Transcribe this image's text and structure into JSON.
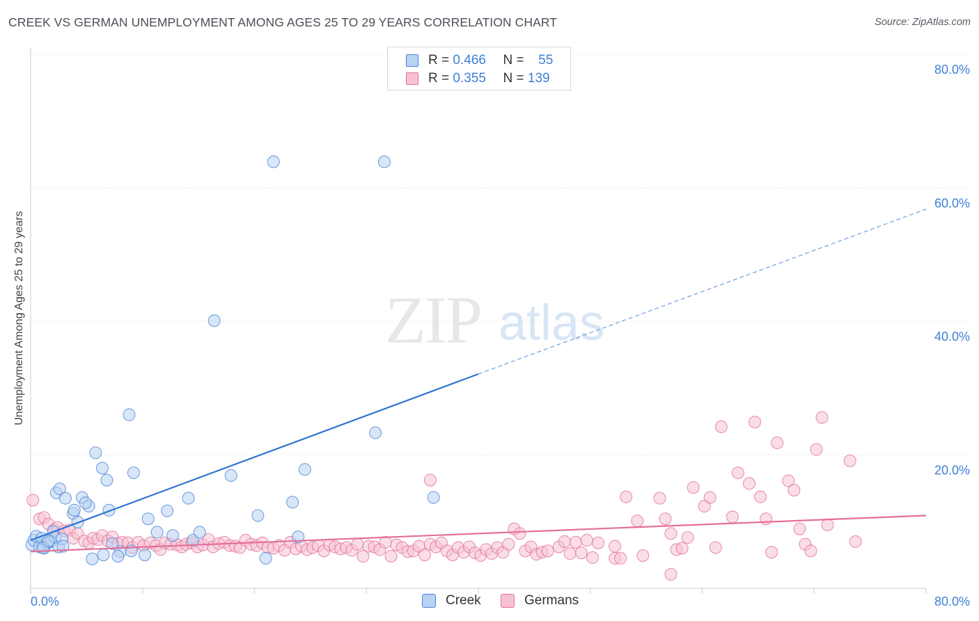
{
  "chart_data": {
    "type": "scatter",
    "title": "CREEK VS GERMAN UNEMPLOYMENT AMONG AGES 25 TO 29 YEARS CORRELATION CHART",
    "source": "Source: ZipAtlas.com",
    "ylabel": "Unemployment Among Ages 25 to 29 years",
    "xlim": [
      0,
      80
    ],
    "ylim": [
      0,
      80
    ],
    "x_tick_labels": [
      "0.0%",
      "80.0%"
    ],
    "y_ticks": [
      {
        "value": 20,
        "label": "20.0%"
      },
      {
        "value": 40,
        "label": "40.0%"
      },
      {
        "value": 60,
        "label": "60.0%"
      },
      {
        "value": 80,
        "label": "80.0%"
      }
    ],
    "watermark": {
      "zip": "ZIP",
      "atlas": "atlas"
    },
    "legend": [
      {
        "r_label": "R =",
        "r": "0.466",
        "n_label": "N =",
        "n": "55"
      },
      {
        "r_label": "R =",
        "r": "0.355",
        "n_label": "N =",
        "n": "139"
      }
    ],
    "series": [
      {
        "name": "Creek",
        "color": "#4a84d4",
        "fill": "#b8d2f3",
        "trend": {
          "x0": 0,
          "y0": 7.2,
          "x1": 40,
          "y1": 32.1,
          "dash_x1": 80,
          "dash_y1": 56.8
        },
        "points": [
          [
            0.1,
            6.5
          ],
          [
            0.3,
            7.2
          ],
          [
            0.5,
            7.8
          ],
          [
            0.8,
            6.2
          ],
          [
            1.0,
            7.5
          ],
          [
            1.2,
            6.0
          ],
          [
            1.5,
            6.8
          ],
          [
            1.8,
            7.0
          ],
          [
            2.0,
            8.5
          ],
          [
            2.2,
            7.6
          ],
          [
            2.5,
            6.2
          ],
          [
            2.8,
            7.4
          ],
          [
            2.3,
            14.3
          ],
          [
            2.6,
            14.9
          ],
          [
            3.1,
            13.5
          ],
          [
            3.8,
            11.2
          ],
          [
            3.9,
            11.7
          ],
          [
            4.6,
            13.6
          ],
          [
            4.2,
            9.9
          ],
          [
            5.2,
            12.3
          ],
          [
            4.9,
            12.8
          ],
          [
            5.8,
            20.3
          ],
          [
            6.4,
            18.0
          ],
          [
            6.8,
            16.2
          ],
          [
            7.0,
            11.7
          ],
          [
            8.8,
            26.0
          ],
          [
            9.2,
            17.3
          ],
          [
            10.2,
            5.0
          ],
          [
            10.5,
            10.4
          ],
          [
            11.3,
            8.4
          ],
          [
            12.2,
            11.6
          ],
          [
            12.7,
            7.9
          ],
          [
            14.1,
            13.5
          ],
          [
            16.4,
            40.1
          ],
          [
            17.9,
            16.9
          ],
          [
            20.3,
            10.9
          ],
          [
            21.7,
            63.9
          ],
          [
            23.4,
            12.9
          ],
          [
            23.9,
            7.7
          ],
          [
            24.5,
            17.8
          ],
          [
            36.0,
            13.6
          ],
          [
            30.8,
            23.3
          ],
          [
            31.6,
            63.9
          ],
          [
            14.5,
            7.2
          ],
          [
            8.0,
            5.5
          ],
          [
            1.1,
            6.1
          ],
          [
            2.9,
            6.3
          ],
          [
            6.5,
            5.0
          ],
          [
            7.8,
            4.8
          ],
          [
            5.5,
            4.4
          ],
          [
            7.3,
            6.7
          ],
          [
            9.0,
            5.6
          ],
          [
            15.1,
            8.4
          ],
          [
            21.0,
            4.5
          ],
          [
            1.6,
            7.1
          ]
        ]
      },
      {
        "name": "Germans",
        "color": "#e36f9b",
        "fill": "#f6c2d2",
        "trend": {
          "x0": 0,
          "y0": 5.5,
          "x1": 80,
          "y1": 10.9
        },
        "points": [
          [
            0.2,
            13.2
          ],
          [
            0.8,
            10.4
          ],
          [
            1.2,
            10.6
          ],
          [
            1.6,
            9.6
          ],
          [
            2.1,
            8.8
          ],
          [
            2.4,
            9.1
          ],
          [
            3.0,
            8.6
          ],
          [
            3.5,
            8.7
          ],
          [
            3.8,
            7.5
          ],
          [
            4.2,
            8.2
          ],
          [
            4.8,
            7.1
          ],
          [
            5.2,
            6.8
          ],
          [
            5.6,
            7.5
          ],
          [
            6.0,
            7.3
          ],
          [
            6.4,
            7.9
          ],
          [
            6.9,
            7.1
          ],
          [
            7.3,
            7.7
          ],
          [
            7.8,
            6.7
          ],
          [
            8.2,
            6.9
          ],
          [
            8.7,
            6.8
          ],
          [
            9.1,
            6.1
          ],
          [
            9.6,
            6.9
          ],
          [
            10.1,
            6.4
          ],
          [
            10.7,
            6.8
          ],
          [
            11.2,
            6.4
          ],
          [
            11.6,
            5.8
          ],
          [
            12.0,
            6.8
          ],
          [
            12.5,
            6.6
          ],
          [
            13.1,
            6.5
          ],
          [
            13.5,
            6.2
          ],
          [
            13.9,
            6.6
          ],
          [
            14.4,
            6.8
          ],
          [
            14.9,
            6.2
          ],
          [
            15.4,
            6.5
          ],
          [
            15.9,
            7.3
          ],
          [
            16.3,
            6.2
          ],
          [
            16.8,
            6.7
          ],
          [
            17.3,
            6.9
          ],
          [
            17.8,
            6.4
          ],
          [
            18.3,
            6.3
          ],
          [
            18.7,
            6.1
          ],
          [
            19.2,
            7.2
          ],
          [
            19.7,
            6.6
          ],
          [
            20.2,
            6.4
          ],
          [
            20.7,
            6.8
          ],
          [
            21.2,
            6.1
          ],
          [
            21.7,
            6.0
          ],
          [
            22.2,
            6.4
          ],
          [
            22.7,
            5.7
          ],
          [
            23.2,
            6.9
          ],
          [
            23.7,
            5.9
          ],
          [
            24.2,
            6.3
          ],
          [
            24.7,
            5.8
          ],
          [
            25.2,
            6.1
          ],
          [
            25.7,
            6.4
          ],
          [
            26.2,
            5.6
          ],
          [
            26.7,
            6.5
          ],
          [
            27.2,
            6.2
          ],
          [
            27.7,
            5.9
          ],
          [
            28.2,
            6.1
          ],
          [
            28.7,
            5.7
          ],
          [
            29.2,
            6.6
          ],
          [
            29.7,
            4.8
          ],
          [
            30.2,
            6.3
          ],
          [
            30.7,
            6.2
          ],
          [
            31.2,
            5.8
          ],
          [
            31.7,
            6.9
          ],
          [
            32.2,
            4.8
          ],
          [
            32.7,
            6.5
          ],
          [
            33.2,
            6.1
          ],
          [
            33.7,
            5.5
          ],
          [
            34.2,
            5.6
          ],
          [
            34.7,
            6.3
          ],
          [
            35.2,
            5.0
          ],
          [
            35.7,
            6.6
          ],
          [
            36.2,
            6.2
          ],
          [
            36.7,
            6.8
          ],
          [
            37.2,
            5.6
          ],
          [
            37.7,
            5.0
          ],
          [
            38.2,
            6.1
          ],
          [
            38.7,
            5.4
          ],
          [
            39.2,
            6.2
          ],
          [
            39.7,
            5.3
          ],
          [
            40.2,
            4.9
          ],
          [
            40.7,
            5.8
          ],
          [
            41.2,
            5.2
          ],
          [
            41.7,
            6.1
          ],
          [
            42.2,
            5.4
          ],
          [
            42.7,
            6.6
          ],
          [
            43.2,
            8.9
          ],
          [
            43.7,
            8.2
          ],
          [
            44.2,
            5.6
          ],
          [
            44.7,
            6.2
          ],
          [
            45.2,
            5.1
          ],
          [
            45.7,
            5.4
          ],
          [
            46.2,
            5.6
          ],
          [
            47.2,
            6.2
          ],
          [
            47.7,
            7.0
          ],
          [
            48.2,
            5.2
          ],
          [
            48.7,
            6.9
          ],
          [
            49.2,
            5.3
          ],
          [
            49.7,
            7.2
          ],
          [
            50.2,
            4.6
          ],
          [
            50.7,
            6.8
          ],
          [
            52.2,
            4.5
          ],
          [
            52.7,
            4.5
          ],
          [
            52.2,
            6.3
          ],
          [
            53.2,
            13.7
          ],
          [
            54.2,
            10.1
          ],
          [
            54.7,
            4.9
          ],
          [
            56.2,
            13.5
          ],
          [
            56.7,
            10.4
          ],
          [
            57.7,
            5.8
          ],
          [
            57.2,
            8.2
          ],
          [
            58.2,
            6.0
          ],
          [
            58.7,
            7.6
          ],
          [
            59.2,
            15.1
          ],
          [
            60.2,
            12.3
          ],
          [
            60.7,
            13.6
          ],
          [
            61.2,
            6.1
          ],
          [
            61.7,
            24.2
          ],
          [
            62.7,
            10.7
          ],
          [
            63.2,
            17.3
          ],
          [
            64.2,
            15.7
          ],
          [
            64.7,
            24.9
          ],
          [
            65.2,
            13.7
          ],
          [
            65.7,
            10.4
          ],
          [
            66.2,
            5.4
          ],
          [
            66.7,
            21.8
          ],
          [
            67.7,
            16.1
          ],
          [
            68.2,
            14.7
          ],
          [
            68.7,
            8.9
          ],
          [
            69.2,
            6.6
          ],
          [
            69.7,
            5.6
          ],
          [
            70.2,
            20.8
          ],
          [
            70.7,
            25.6
          ],
          [
            71.2,
            9.5
          ],
          [
            73.2,
            19.1
          ],
          [
            73.7,
            7.0
          ],
          [
            57.2,
            2.1
          ],
          [
            35.7,
            16.2
          ]
        ]
      }
    ]
  }
}
